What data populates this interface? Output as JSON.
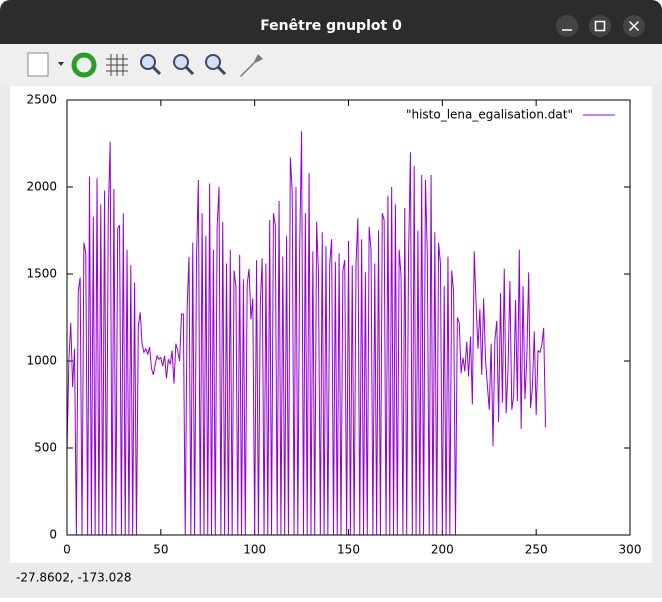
{
  "window": {
    "title": "Fenêtre gnuplot 0",
    "status": "-27.8602, -173.028"
  },
  "chart_data": {
    "type": "line",
    "x": [
      0,
      1,
      2,
      3,
      4,
      5,
      6,
      7,
      8,
      9,
      10,
      11,
      12,
      13,
      14,
      15,
      16,
      17,
      18,
      19,
      20,
      21,
      22,
      23,
      24,
      25,
      26,
      27,
      28,
      29,
      30,
      31,
      32,
      33,
      34,
      35,
      36,
      37,
      38,
      39,
      40,
      41,
      42,
      43,
      44,
      45,
      46,
      47,
      48,
      49,
      50,
      51,
      52,
      53,
      54,
      55,
      56,
      57,
      58,
      59,
      60,
      61,
      62,
      63,
      64,
      65,
      66,
      67,
      68,
      69,
      70,
      71,
      72,
      73,
      74,
      75,
      76,
      77,
      78,
      79,
      80,
      81,
      82,
      83,
      84,
      85,
      86,
      87,
      88,
      89,
      90,
      91,
      92,
      93,
      94,
      95,
      96,
      97,
      98,
      99,
      100,
      101,
      102,
      103,
      104,
      105,
      106,
      107,
      108,
      109,
      110,
      111,
      112,
      113,
      114,
      115,
      116,
      117,
      118,
      119,
      120,
      121,
      122,
      123,
      124,
      125,
      126,
      127,
      128,
      129,
      130,
      131,
      132,
      133,
      134,
      135,
      136,
      137,
      138,
      139,
      140,
      141,
      142,
      143,
      144,
      145,
      146,
      147,
      148,
      149,
      150,
      151,
      152,
      153,
      154,
      155,
      156,
      157,
      158,
      159,
      160,
      161,
      162,
      163,
      164,
      165,
      166,
      167,
      168,
      169,
      170,
      171,
      172,
      173,
      174,
      175,
      176,
      177,
      178,
      179,
      180,
      181,
      182,
      183,
      184,
      185,
      186,
      187,
      188,
      189,
      190,
      191,
      192,
      193,
      194,
      195,
      196,
      197,
      198,
      199,
      200,
      201,
      202,
      203,
      204,
      205,
      206,
      207,
      208,
      209,
      210,
      211,
      212,
      213,
      214,
      215,
      216,
      217,
      218,
      219,
      220,
      221,
      222,
      223,
      224,
      225,
      226,
      227,
      228,
      229,
      230,
      231,
      232,
      233,
      234,
      235,
      236,
      237,
      238,
      239,
      240,
      241,
      242,
      243,
      244,
      245,
      246,
      247,
      248,
      249,
      250,
      251,
      252,
      253,
      254,
      255
    ],
    "series": [
      {
        "name": "\"histo_lena_egalisation.dat\"",
        "color": "#9400d3",
        "values": [
          480,
          1000,
          1220,
          850,
          1070,
          0,
          1400,
          1480,
          0,
          1680,
          1620,
          0,
          2060,
          0,
          1830,
          0,
          2050,
          0,
          1900,
          0,
          1980,
          0,
          1850,
          2260,
          0,
          1990,
          0,
          1760,
          1780,
          0,
          1850,
          0,
          1640,
          0,
          1550,
          0,
          1450,
          0,
          1200,
          1280,
          1100,
          1050,
          1070,
          1040,
          1080,
          960,
          920,
          980,
          1030,
          1010,
          1020,
          970,
          1030,
          900,
          1010,
          980,
          1060,
          870,
          1100,
          1060,
          1000,
          1270,
          1270,
          0,
          1300,
          1600,
          0,
          1680,
          0,
          1580,
          2040,
          0,
          1850,
          0,
          1720,
          0,
          2020,
          0,
          1640,
          0,
          1770,
          2000,
          0,
          1800,
          0,
          1560,
          0,
          1640,
          0,
          1520,
          1430,
          0,
          1610,
          0,
          1470,
          0,
          1440,
          1530,
          1240,
          1360,
          0,
          1580,
          0,
          1330,
          1590,
          0,
          1560,
          0,
          1810,
          0,
          1850,
          1780,
          0,
          1920,
          0,
          1600,
          0,
          1720,
          0,
          2170,
          1980,
          0,
          2000,
          0,
          1660,
          2320,
          0,
          1850,
          0,
          2080,
          0,
          1630,
          0,
          1800,
          1500,
          0,
          1740,
          0,
          1660,
          0,
          1560,
          1700,
          0,
          1570,
          0,
          1620,
          0,
          1520,
          1580,
          0,
          1690,
          0,
          1550,
          0,
          1560,
          1820,
          0,
          1700,
          0,
          1510,
          0,
          1770,
          1640,
          0,
          1560,
          0,
          1750,
          0,
          1850,
          1810,
          0,
          1950,
          0,
          2000,
          0,
          1900,
          0,
          1640,
          1490,
          0,
          1880,
          0,
          1610,
          2200,
          0,
          2120,
          0,
          1750,
          0,
          2070,
          0,
          2040,
          1610,
          0,
          2070,
          0,
          1740,
          0,
          1680,
          1560,
          0,
          1430,
          0,
          1600,
          0,
          1520,
          1400,
          0,
          1250,
          1220,
          930,
          1020,
          940,
          1110,
          910,
          1140,
          750,
          1630,
          1320,
          1070,
          1300,
          920,
          1360,
          1010,
          860,
          720,
          1100,
          510,
          1120,
          1230,
          650,
          1390,
          760,
          1530,
          700,
          950,
          1460,
          720,
          800,
          1350,
          770,
          1640,
          610,
          1430,
          780,
          1010,
          1510,
          730,
          850,
          1170,
          690,
          1060,
          1050,
          1090,
          1190,
          620
        ]
      }
    ],
    "xlim": [
      0,
      300
    ],
    "xticks": [
      0,
      50,
      100,
      150,
      200,
      250,
      300
    ],
    "ylim": [
      0,
      2500
    ],
    "yticks": [
      0,
      500,
      1000,
      1500,
      2000,
      2500
    ],
    "grid": false,
    "legend": "top-right"
  }
}
